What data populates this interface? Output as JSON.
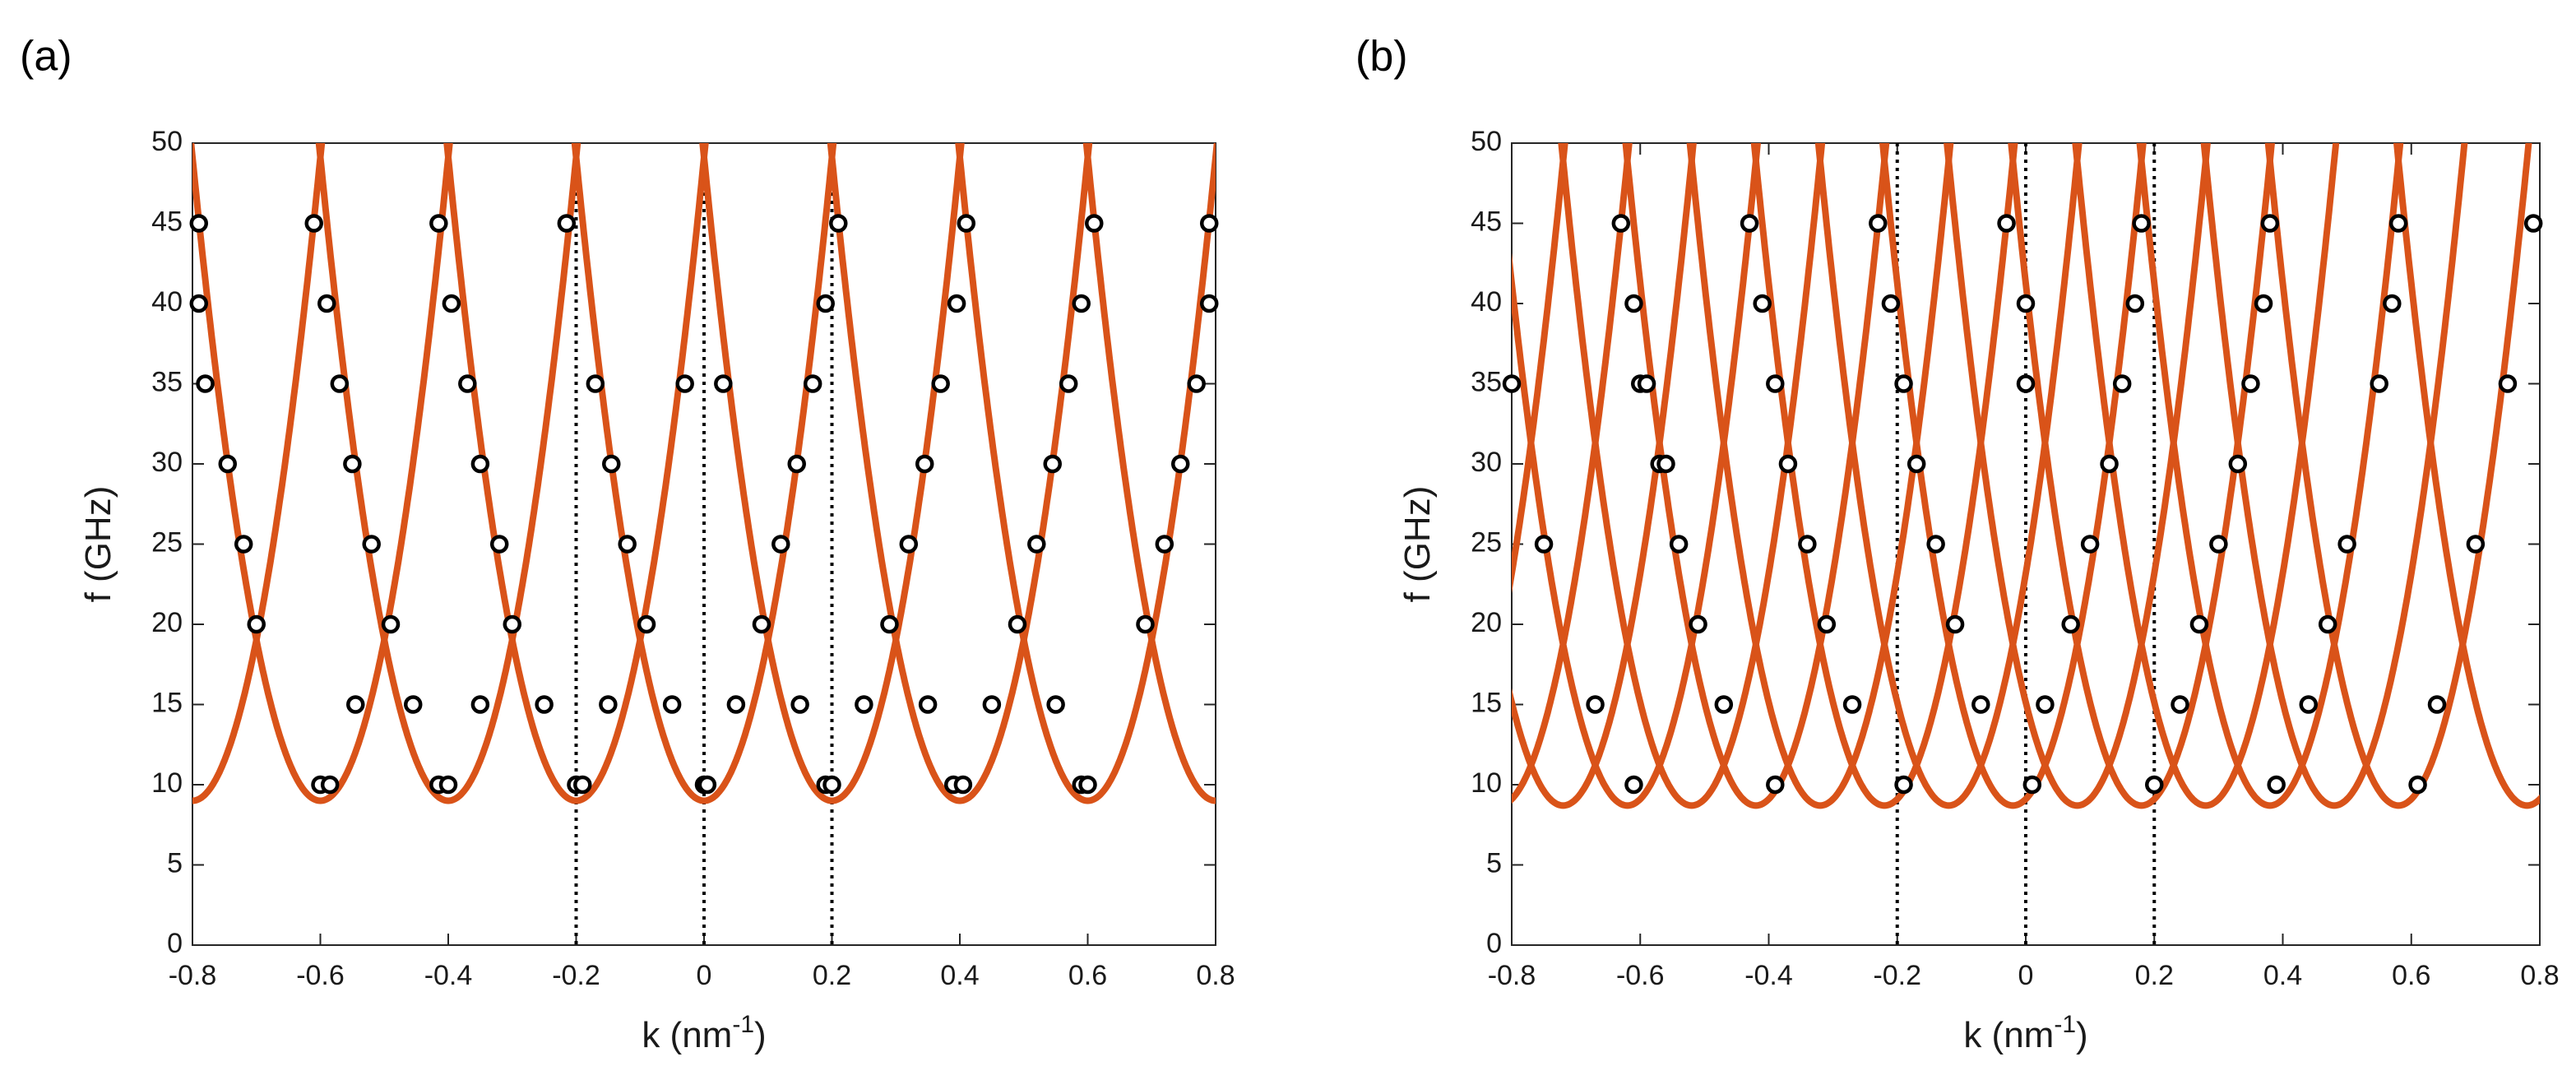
{
  "chart_data": [
    {
      "type": "line",
      "panel_label": "(a)",
      "xlabel": {
        "base": "k (nm",
        "sup": "-1",
        "close": ")"
      },
      "ylabel": "f (GHz)",
      "xlim": [
        -0.8,
        0.8
      ],
      "ylim": [
        0,
        50
      ],
      "xticks": [
        -0.8,
        -0.6,
        -0.4,
        -0.2,
        0,
        0.2,
        0.4,
        0.6,
        0.8
      ],
      "xtick_labels": [
        "-0.8",
        "-0.6",
        "-0.4",
        "-0.2",
        "0",
        "0.2",
        "0.4",
        "0.6",
        "0.8"
      ],
      "yticks": [
        0,
        5,
        10,
        15,
        20,
        25,
        30,
        35,
        40,
        45,
        50
      ],
      "ytick_labels": [
        "0",
        "5",
        "10",
        "15",
        "20",
        "25",
        "30",
        "35",
        "40",
        "45",
        "50"
      ],
      "vlines": [
        -0.2,
        0,
        0.2
      ],
      "curves": {
        "color": "#d95319",
        "f0": 9.0,
        "a": 1003,
        "k0": 0.0,
        "d": 0,
        "period": 0.2,
        "centers_n": [
          -4,
          -3,
          -2,
          -1,
          0,
          1,
          2,
          3,
          4
        ]
      },
      "points": [
        [
          -0.6,
          10
        ],
        [
          -0.585,
          10
        ],
        [
          -0.415,
          10
        ],
        [
          -0.4,
          10
        ],
        [
          -0.2,
          10
        ],
        [
          -0.19,
          10
        ],
        [
          0,
          10
        ],
        [
          0.005,
          10
        ],
        [
          0.19,
          10
        ],
        [
          0.2,
          10
        ],
        [
          0.39,
          10
        ],
        [
          0.405,
          10
        ],
        [
          0.59,
          10
        ],
        [
          0.6,
          10
        ],
        [
          -0.545,
          15
        ],
        [
          -0.455,
          15
        ],
        [
          -0.35,
          15
        ],
        [
          -0.25,
          15
        ],
        [
          -0.15,
          15
        ],
        [
          -0.05,
          15
        ],
        [
          0.05,
          15
        ],
        [
          0.15,
          15
        ],
        [
          0.25,
          15
        ],
        [
          0.35,
          15
        ],
        [
          0.45,
          15
        ],
        [
          0.55,
          15
        ],
        [
          -0.7,
          20
        ],
        [
          -0.49,
          20
        ],
        [
          -0.3,
          20
        ],
        [
          -0.09,
          20
        ],
        [
          0.09,
          20
        ],
        [
          0.29,
          20
        ],
        [
          0.49,
          20
        ],
        [
          0.69,
          20
        ],
        [
          -0.72,
          25
        ],
        [
          -0.52,
          25
        ],
        [
          -0.32,
          25
        ],
        [
          -0.12,
          25
        ],
        [
          0.12,
          25
        ],
        [
          0.32,
          25
        ],
        [
          0.52,
          25
        ],
        [
          0.72,
          25
        ],
        [
          -0.745,
          30
        ],
        [
          -0.55,
          30
        ],
        [
          -0.35,
          30
        ],
        [
          -0.145,
          30
        ],
        [
          0.145,
          30
        ],
        [
          0.345,
          30
        ],
        [
          0.545,
          30
        ],
        [
          0.745,
          30
        ],
        [
          -0.78,
          35
        ],
        [
          -0.57,
          35
        ],
        [
          -0.37,
          35
        ],
        [
          -0.17,
          35
        ],
        [
          -0.03,
          35
        ],
        [
          0.03,
          35
        ],
        [
          0.17,
          35
        ],
        [
          0.37,
          35
        ],
        [
          0.57,
          35
        ],
        [
          0.77,
          35
        ],
        [
          -0.79,
          40
        ],
        [
          -0.59,
          40
        ],
        [
          -0.395,
          40
        ],
        [
          0.19,
          40
        ],
        [
          0.395,
          40
        ],
        [
          0.59,
          40
        ],
        [
          0.79,
          40
        ],
        [
          -0.79,
          45
        ],
        [
          -0.61,
          45
        ],
        [
          -0.415,
          45
        ],
        [
          -0.215,
          45
        ],
        [
          0.21,
          45
        ],
        [
          0.41,
          45
        ],
        [
          0.61,
          45
        ],
        [
          0.79,
          45
        ]
      ]
    },
    {
      "type": "line",
      "panel_label": "(b)",
      "xlabel": {
        "base": "k (nm",
        "sup": "-1",
        "close": ")"
      },
      "ylabel": "f (GHz)",
      "xlim": [
        -0.8,
        0.8
      ],
      "ylim": [
        0,
        50
      ],
      "xticks": [
        -0.8,
        -0.6,
        -0.4,
        -0.2,
        0,
        0.2,
        0.4,
        0.6,
        0.8
      ],
      "xtick_labels": [
        "-0.8",
        "-0.6",
        "-0.4",
        "-0.2",
        "0",
        "0.2",
        "0.4",
        "0.6",
        "0.8"
      ],
      "yticks": [
        0,
        5,
        10,
        15,
        20,
        25,
        30,
        35,
        40,
        45,
        50
      ],
      "ytick_labels": [
        "0",
        "5",
        "10",
        "15",
        "20",
        "25",
        "30",
        "35",
        "40",
        "45",
        "50"
      ],
      "vlines": [
        -0.2,
        0,
        0.2
      ],
      "curves": {
        "color": "#d95319",
        "f0": 8.7,
        "a": 1005,
        "k0": -0.02,
        "d": -0.3,
        "period": 0.2,
        "centers_n": [
          -4,
          -3,
          -2,
          -1,
          0,
          1,
          2,
          3,
          4
        ]
      },
      "points": [
        [
          -0.61,
          10
        ],
        [
          -0.39,
          10
        ],
        [
          -0.19,
          10
        ],
        [
          0.01,
          10
        ],
        [
          0.2,
          10
        ],
        [
          0.39,
          10
        ],
        [
          0.61,
          10
        ],
        [
          -0.67,
          15
        ],
        [
          -0.47,
          15
        ],
        [
          -0.27,
          15
        ],
        [
          -0.07,
          15
        ],
        [
          0.03,
          15
        ],
        [
          0.24,
          15
        ],
        [
          0.44,
          15
        ],
        [
          0.64,
          15
        ],
        [
          -0.75,
          25
        ],
        [
          -0.34,
          25
        ],
        [
          -0.14,
          25
        ],
        [
          0.1,
          25
        ],
        [
          0.3,
          25
        ],
        [
          0.5,
          25
        ],
        [
          0.7,
          25
        ],
        [
          -0.8,
          35
        ],
        [
          -0.6,
          35
        ],
        [
          -0.39,
          35
        ],
        [
          -0.19,
          35
        ],
        [
          0,
          35
        ],
        [
          0.15,
          35
        ],
        [
          0.35,
          35
        ],
        [
          0.55,
          35
        ],
        [
          0.75,
          35
        ],
        [
          -0.61,
          40
        ],
        [
          -0.41,
          40
        ],
        [
          -0.21,
          40
        ],
        [
          0,
          40
        ],
        [
          0.17,
          40
        ],
        [
          0.37,
          40
        ],
        [
          0.57,
          40
        ],
        [
          -0.63,
          45
        ],
        [
          -0.43,
          45
        ],
        [
          -0.23,
          45
        ],
        [
          -0.03,
          45
        ],
        [
          0.18,
          45
        ],
        [
          0.38,
          45
        ],
        [
          0.58,
          45
        ],
        [
          0.79,
          45
        ],
        [
          -0.57,
          30
        ],
        [
          -0.37,
          30
        ],
        [
          -0.17,
          30
        ],
        [
          0.13,
          30
        ],
        [
          0.33,
          30
        ],
        [
          -0.51,
          20
        ],
        [
          -0.31,
          20
        ],
        [
          -0.11,
          20
        ],
        [
          0.07,
          20
        ],
        [
          0.27,
          20
        ],
        [
          0.47,
          20
        ],
        [
          -0.54,
          25
        ],
        [
          -0.56,
          30
        ],
        [
          -0.59,
          35
        ]
      ]
    }
  ]
}
